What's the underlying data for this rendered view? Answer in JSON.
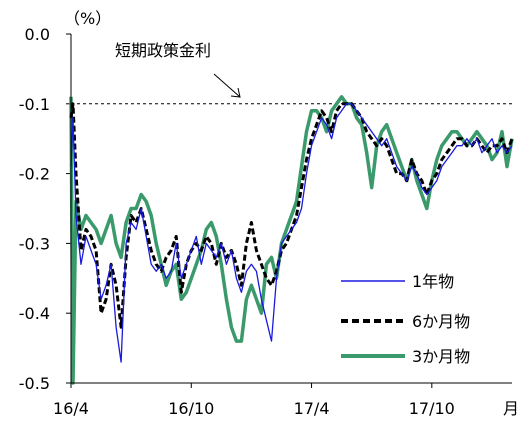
{
  "chart_data": {
    "type": "line",
    "unit_label": "（%）",
    "xlabel": "月",
    "ylim": [
      -0.5,
      0.0
    ],
    "yticks": [
      0.0,
      -0.1,
      -0.2,
      -0.3,
      -0.4,
      -0.5
    ],
    "ytick_labels": [
      "0.0",
      "-0.1",
      "-0.2",
      "-0.3",
      "-0.4",
      "-0.5"
    ],
    "xlim": [
      0,
      22
    ],
    "xticks": [
      0,
      6,
      12,
      18
    ],
    "xtick_labels": [
      "16/4",
      "16/10",
      "17/4",
      "17/10"
    ],
    "reference_line": {
      "label": "短期政策金利",
      "value": -0.1
    },
    "legend_position": "bottom-right",
    "grid": false,
    "series": [
      {
        "name": "1年物",
        "color": "#1a1adf",
        "style": "solid",
        "x": [
          0,
          0.1,
          0.25,
          0.5,
          0.75,
          1.0,
          1.25,
          1.5,
          1.75,
          2.0,
          2.25,
          2.5,
          2.75,
          3.0,
          3.25,
          3.5,
          3.75,
          4.0,
          4.25,
          4.5,
          4.75,
          5.0,
          5.25,
          5.5,
          5.75,
          6.0,
          6.25,
          6.5,
          6.75,
          7.0,
          7.25,
          7.5,
          7.75,
          8.0,
          8.25,
          8.5,
          8.75,
          9.0,
          9.25,
          9.5,
          9.75,
          10.0,
          10.25,
          10.5,
          10.75,
          11.0,
          11.25,
          11.5,
          11.75,
          12.0,
          12.25,
          12.5,
          12.75,
          13.0,
          13.25,
          13.5,
          13.75,
          14.0,
          14.25,
          14.5,
          14.75,
          15.0,
          15.25,
          15.5,
          15.75,
          16.0,
          16.25,
          16.5,
          16.75,
          17.0,
          17.25,
          17.5,
          17.75,
          18.0,
          18.25,
          18.5,
          18.75,
          19.0,
          19.25,
          19.5,
          19.75,
          20.0,
          20.25,
          20.5,
          20.75,
          21.0,
          21.25,
          21.5,
          21.75,
          22.0
        ],
        "y": [
          -0.19,
          -0.12,
          -0.26,
          -0.33,
          -0.29,
          -0.31,
          -0.33,
          -0.38,
          -0.36,
          -0.33,
          -0.42,
          -0.47,
          -0.3,
          -0.27,
          -0.28,
          -0.25,
          -0.29,
          -0.33,
          -0.34,
          -0.33,
          -0.35,
          -0.34,
          -0.3,
          -0.35,
          -0.33,
          -0.31,
          -0.29,
          -0.33,
          -0.3,
          -0.31,
          -0.32,
          -0.3,
          -0.33,
          -0.31,
          -0.35,
          -0.37,
          -0.34,
          -0.33,
          -0.34,
          -0.38,
          -0.41,
          -0.44,
          -0.35,
          -0.3,
          -0.29,
          -0.28,
          -0.27,
          -0.25,
          -0.2,
          -0.16,
          -0.14,
          -0.12,
          -0.13,
          -0.15,
          -0.12,
          -0.11,
          -0.1,
          -0.1,
          -0.11,
          -0.12,
          -0.13,
          -0.14,
          -0.15,
          -0.16,
          -0.15,
          -0.17,
          -0.19,
          -0.2,
          -0.21,
          -0.19,
          -0.2,
          -0.22,
          -0.23,
          -0.22,
          -0.21,
          -0.19,
          -0.18,
          -0.17,
          -0.16,
          -0.16,
          -0.15,
          -0.16,
          -0.15,
          -0.17,
          -0.16,
          -0.15,
          -0.17,
          -0.16,
          -0.17,
          -0.16
        ]
      },
      {
        "name": "6か月物",
        "color": "#000000",
        "style": "dashed",
        "x": [
          0,
          0.1,
          0.25,
          0.5,
          0.75,
          1.0,
          1.25,
          1.5,
          1.75,
          2.0,
          2.25,
          2.5,
          2.75,
          3.0,
          3.25,
          3.5,
          3.75,
          4.0,
          4.25,
          4.5,
          4.75,
          5.0,
          5.25,
          5.5,
          5.75,
          6.0,
          6.25,
          6.5,
          6.75,
          7.0,
          7.25,
          7.5,
          7.75,
          8.0,
          8.25,
          8.5,
          8.75,
          9.0,
          9.25,
          9.5,
          9.75,
          10.0,
          10.25,
          10.5,
          10.75,
          11.0,
          11.25,
          11.5,
          11.75,
          12.0,
          12.25,
          12.5,
          12.75,
          13.0,
          13.25,
          13.5,
          13.75,
          14.0,
          14.25,
          14.5,
          14.75,
          15.0,
          15.25,
          15.5,
          15.75,
          16.0,
          16.25,
          16.5,
          16.75,
          17.0,
          17.25,
          17.5,
          17.75,
          18.0,
          18.25,
          18.5,
          18.75,
          19.0,
          19.25,
          19.5,
          19.75,
          20.0,
          20.25,
          20.5,
          20.75,
          21.0,
          21.25,
          21.5,
          21.75,
          22.0
        ],
        "y": [
          -0.12,
          -0.1,
          -0.2,
          -0.31,
          -0.28,
          -0.29,
          -0.31,
          -0.4,
          -0.38,
          -0.33,
          -0.36,
          -0.42,
          -0.32,
          -0.26,
          -0.27,
          -0.25,
          -0.28,
          -0.31,
          -0.33,
          -0.34,
          -0.32,
          -0.31,
          -0.29,
          -0.37,
          -0.33,
          -0.31,
          -0.3,
          -0.31,
          -0.29,
          -0.3,
          -0.33,
          -0.3,
          -0.32,
          -0.31,
          -0.33,
          -0.36,
          -0.3,
          -0.27,
          -0.31,
          -0.33,
          -0.35,
          -0.36,
          -0.34,
          -0.31,
          -0.3,
          -0.28,
          -0.26,
          -0.22,
          -0.18,
          -0.15,
          -0.13,
          -0.11,
          -0.12,
          -0.14,
          -0.11,
          -0.1,
          -0.1,
          -0.1,
          -0.11,
          -0.12,
          -0.14,
          -0.15,
          -0.16,
          -0.15,
          -0.16,
          -0.18,
          -0.2,
          -0.2,
          -0.21,
          -0.18,
          -0.2,
          -0.21,
          -0.23,
          -0.21,
          -0.2,
          -0.18,
          -0.17,
          -0.16,
          -0.15,
          -0.15,
          -0.16,
          -0.16,
          -0.15,
          -0.16,
          -0.17,
          -0.16,
          -0.16,
          -0.15,
          -0.17,
          -0.15
        ]
      },
      {
        "name": "3か月物",
        "color": "#3b9a6b",
        "style": "solid",
        "x": [
          0,
          0.1,
          0.25,
          0.5,
          0.75,
          1.0,
          1.25,
          1.5,
          1.75,
          2.0,
          2.25,
          2.5,
          2.75,
          3.0,
          3.25,
          3.5,
          3.75,
          4.0,
          4.25,
          4.5,
          4.75,
          5.0,
          5.25,
          5.5,
          5.75,
          6.0,
          6.25,
          6.5,
          6.75,
          7.0,
          7.25,
          7.5,
          7.75,
          8.0,
          8.25,
          8.5,
          8.75,
          9.0,
          9.25,
          9.5,
          9.75,
          10.0,
          10.25,
          10.5,
          10.75,
          11.0,
          11.25,
          11.5,
          11.75,
          12.0,
          12.25,
          12.5,
          12.75,
          13.0,
          13.25,
          13.5,
          13.75,
          14.0,
          14.25,
          14.5,
          14.75,
          15.0,
          15.25,
          15.5,
          15.75,
          16.0,
          16.25,
          16.5,
          16.75,
          17.0,
          17.25,
          17.5,
          17.75,
          18.0,
          18.25,
          18.5,
          18.75,
          19.0,
          19.25,
          19.5,
          19.75,
          20.0,
          20.25,
          20.5,
          20.75,
          21.0,
          21.25,
          21.5,
          21.75,
          22.0
        ],
        "y": [
          -0.09,
          -0.5,
          -0.24,
          -0.28,
          -0.26,
          -0.27,
          -0.28,
          -0.3,
          -0.28,
          -0.26,
          -0.3,
          -0.32,
          -0.27,
          -0.25,
          -0.25,
          -0.23,
          -0.24,
          -0.26,
          -0.3,
          -0.33,
          -0.36,
          -0.34,
          -0.33,
          -0.38,
          -0.37,
          -0.35,
          -0.33,
          -0.31,
          -0.28,
          -0.27,
          -0.29,
          -0.33,
          -0.38,
          -0.42,
          -0.44,
          -0.44,
          -0.38,
          -0.36,
          -0.38,
          -0.4,
          -0.33,
          -0.32,
          -0.35,
          -0.3,
          -0.28,
          -0.26,
          -0.24,
          -0.19,
          -0.14,
          -0.11,
          -0.11,
          -0.12,
          -0.14,
          -0.11,
          -0.1,
          -0.09,
          -0.1,
          -0.1,
          -0.12,
          -0.13,
          -0.17,
          -0.22,
          -0.16,
          -0.14,
          -0.13,
          -0.15,
          -0.17,
          -0.19,
          -0.21,
          -0.18,
          -0.21,
          -0.23,
          -0.25,
          -0.21,
          -0.18,
          -0.16,
          -0.15,
          -0.14,
          -0.14,
          -0.15,
          -0.16,
          -0.15,
          -0.14,
          -0.15,
          -0.16,
          -0.18,
          -0.17,
          -0.14,
          -0.19,
          -0.15
        ]
      }
    ]
  }
}
